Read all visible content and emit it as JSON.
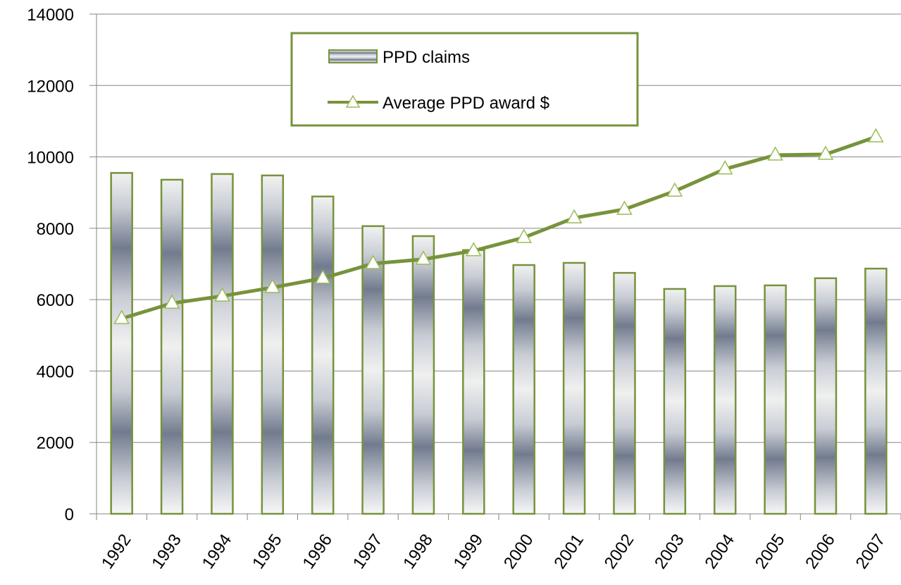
{
  "chart_data": {
    "type": "bar",
    "categories": [
      "1992",
      "1993",
      "1994",
      "1995",
      "1996",
      "1997",
      "1998",
      "1999",
      "2000",
      "2001",
      "2002",
      "2003",
      "2004",
      "2005",
      "2006",
      "2007"
    ],
    "series": [
      {
        "name": "PPD claims",
        "type": "bar",
        "color": "#77933c",
        "values": [
          9550,
          9360,
          9520,
          9480,
          8890,
          8060,
          7780,
          7390,
          6970,
          7030,
          6750,
          6300,
          6380,
          6400,
          6600,
          6870
        ]
      },
      {
        "name": "Average PPD award $",
        "type": "line",
        "color": "#77933c",
        "values": [
          5470,
          5900,
          6100,
          6340,
          6600,
          7010,
          7130,
          7370,
          7740,
          8290,
          8530,
          9040,
          9660,
          10050,
          10070,
          10560
        ]
      }
    ],
    "ylim": [
      0,
      14000
    ],
    "yticks": [
      0,
      2000,
      4000,
      6000,
      8000,
      10000,
      12000,
      14000
    ],
    "grid": true,
    "legend": "top"
  }
}
